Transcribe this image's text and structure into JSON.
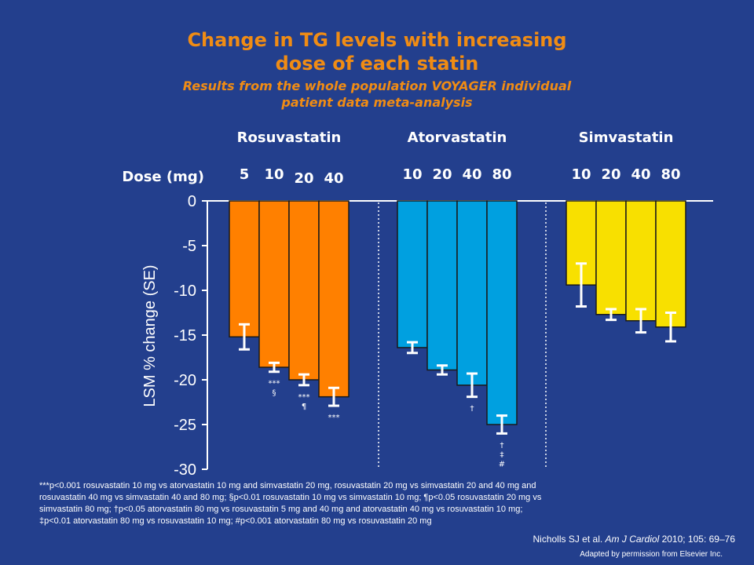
{
  "title_line1": "Change in TG levels with increasing",
  "title_line2": "dose of each statin",
  "subtitle_line1": "Results from the whole population VOYAGER individual",
  "subtitle_line2": "patient data meta-analysis",
  "colors": {
    "background": "#233f8d",
    "title": "#f08c14",
    "rosuvastatin": "#ff8000",
    "atorvastatin": "#00a0e0",
    "simvastatin": "#f8e000"
  },
  "chart_data": {
    "type": "bar",
    "dose_label": "Dose (mg)",
    "ylabel": "LSM % change (SE)",
    "ylim": [
      -30,
      0
    ],
    "yticks": [
      0,
      -5,
      -10,
      -15,
      -20,
      -25,
      -30
    ],
    "groups": [
      {
        "name": "Rosuvastatin",
        "color_key": "rosuvastatin",
        "doses": [
          "5",
          "10",
          "20",
          "40"
        ],
        "values": [
          -15.2,
          -18.6,
          -20.0,
          -21.9
        ],
        "se": [
          1.4,
          0.5,
          0.6,
          1.0
        ],
        "annotations": [
          "",
          "***\n§",
          "***\n¶",
          "***"
        ]
      },
      {
        "name": "Atorvastatin",
        "color_key": "atorvastatin",
        "doses": [
          "10",
          "20",
          "40",
          "80"
        ],
        "values": [
          -16.4,
          -18.9,
          -20.6,
          -25.0
        ],
        "se": [
          0.6,
          0.5,
          1.3,
          1.0
        ],
        "annotations": [
          "",
          "",
          "†",
          "†\n‡\n#"
        ]
      },
      {
        "name": "Simvastatin",
        "color_key": "simvastatin",
        "doses": [
          "10",
          "20",
          "40",
          "80"
        ],
        "values": [
          -9.4,
          -12.7,
          -13.4,
          -14.1
        ],
        "se": [
          2.4,
          0.6,
          1.3,
          1.6
        ],
        "annotations": [
          "",
          "",
          "",
          ""
        ]
      }
    ]
  },
  "footnote_line1": "***p<0.001 rosuvastatin 10 mg vs atorvastatin 10 mg and simvastatin 20 mg, rosuvastatin 20 mg vs simvastatin 20 and 40 mg and",
  "footnote_line2": "rosuvastatin 40 mg vs simvastatin 40 and 80 mg; §p<0.01 rosuvastatin 10 mg vs simvastatin 10 mg; ¶p<0.05 rosuvastatin 20 mg vs",
  "footnote_line3": "simvastatin 80 mg; †p<0.05 atorvastatin 80 mg vs rosuvastatin 5 mg and 40 mg and atorvastatin 40 mg vs rosuvastatin 10 mg;",
  "footnote_line4": "‡p<0.01 atorvastatin 80 mg vs rosuvastatin 10 mg; #p<0.001 atorvastatin 80 mg vs rosuvastatin 20 mg",
  "citation_authors": "Nicholls SJ et al. ",
  "citation_journal": "Am J Cardiol",
  "citation_details": " 2010; 105: 69–76",
  "credit": "Adapted by permission from Elsevier Inc."
}
